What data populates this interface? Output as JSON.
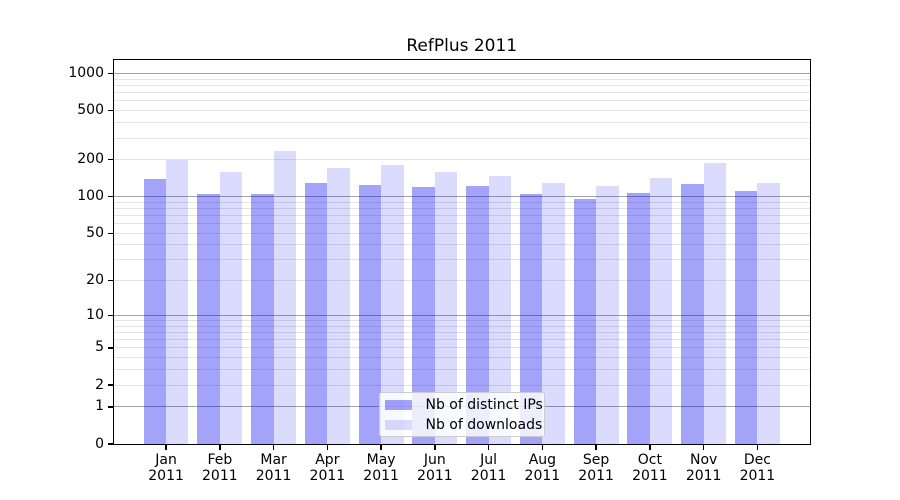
{
  "chart_data": {
    "type": "bar",
    "title": "RefPlus 2011",
    "categories": [
      "Jan 2011",
      "Feb 2011",
      "Mar 2011",
      "Apr 2011",
      "May 2011",
      "Jun 2011",
      "Jul 2011",
      "Aug 2011",
      "Sep 2011",
      "Oct 2011",
      "Nov 2011",
      "Dec 2011"
    ],
    "series": [
      {
        "name": "Nb of distinct IPs",
        "color_hex": "#0000f0",
        "alpha": 0.36,
        "values": [
          138,
          104,
          105,
          129,
          125,
          120,
          121,
          104,
          96,
          106,
          127,
          111
        ]
      },
      {
        "name": "Nb of downloads",
        "color_hex": "#0000f0",
        "alpha": 0.14,
        "values": [
          199,
          160,
          235,
          170,
          182,
          160,
          147,
          130,
          122,
          141,
          188,
          130
        ]
      }
    ],
    "xlabel": "",
    "ylabel": "",
    "yscale": "log10(value+1)",
    "y_ticks": [
      0,
      1,
      2,
      5,
      10,
      20,
      50,
      100,
      200,
      500,
      1000
    ],
    "ylim": [
      0,
      1284
    ],
    "grid": {
      "enabled": true,
      "major_lines_at": [
        1,
        10,
        100,
        1000
      ],
      "major_color": "#a3a3a3",
      "minor_color": "#e4e4e4"
    },
    "legend": {
      "position": "lower center",
      "background": "rgba(255,255,255,0.8)",
      "border_color": "#cccccc"
    }
  },
  "colors": {
    "background": "#ffffff",
    "spine": "#000000",
    "text": "#000000",
    "bar_distinct_ips_on_white": "#a3a3f9",
    "bar_downloads_on_white": "#dcdcfd"
  }
}
